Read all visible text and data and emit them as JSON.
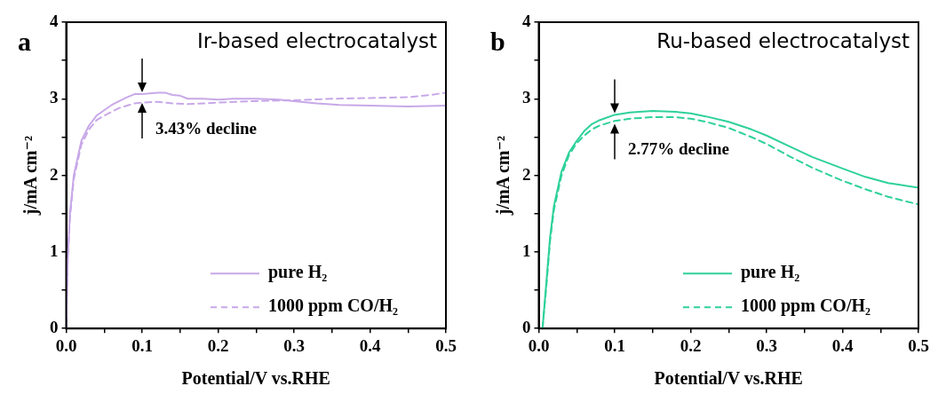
{
  "chart_data": [
    {
      "type": "line",
      "title": "a",
      "xlabel": "Potential/V vs.RHE",
      "ylabel": "j/mA cm⁻²",
      "annotations": [
        "Ir-based electrocatalyst",
        {
          "text": "3.43% decline",
          "x": 0.1,
          "y": 3.06
        }
      ],
      "xlim": [
        0,
        0.5
      ],
      "ylim": [
        0,
        4
      ],
      "xticks": [
        {
          "value": 0,
          "label": "0.0"
        },
        {
          "value": 0.05,
          "label": null
        },
        0.1,
        {
          "value": 0.15,
          "label": null
        },
        0.2,
        {
          "value": 0.25,
          "label": null
        },
        0.3,
        {
          "value": 0.35,
          "label": null
        },
        0.4,
        {
          "value": 0.45,
          "label": null
        },
        0.5
      ],
      "yticks": [
        0,
        {
          "value": 0.5,
          "label": null
        },
        1,
        {
          "value": 1.5,
          "label": null
        },
        2,
        {
          "value": 2.5,
          "label": null
        },
        3,
        {
          "value": 3.5,
          "label": null
        },
        4
      ],
      "legend": "bottom right",
      "marker": "none",
      "series": [
        {
          "name": "pure H₂",
          "color": "#c8a8e8",
          "line_style": "solid",
          "x": [
            0,
            0.002,
            0.005,
            0.01,
            0.02,
            0.03,
            0.04,
            0.05,
            0.06,
            0.07,
            0.08,
            0.09,
            0.1,
            0.11,
            0.12,
            0.13,
            0.14,
            0.15,
            0.16,
            0.18,
            0.2,
            0.22,
            0.25,
            0.28,
            0.3,
            0.33,
            0.36,
            0.4,
            0.45,
            0.5
          ],
          "values": [
            0,
            0.9,
            1.5,
            2.0,
            2.45,
            2.65,
            2.78,
            2.85,
            2.92,
            2.97,
            3.02,
            3.06,
            3.06,
            3.07,
            3.08,
            3.08,
            3.05,
            3.04,
            3.0,
            3.0,
            2.99,
            3.0,
            3.0,
            2.99,
            2.97,
            2.94,
            2.92,
            2.91,
            2.9,
            2.91
          ]
        },
        {
          "name": "1000 ppm CO/H₂",
          "color": "#c8a8e8",
          "line_style": "dashed",
          "x": [
            0,
            0.002,
            0.005,
            0.01,
            0.02,
            0.03,
            0.04,
            0.05,
            0.06,
            0.07,
            0.08,
            0.09,
            0.1,
            0.12,
            0.14,
            0.16,
            0.2,
            0.25,
            0.3,
            0.35,
            0.4,
            0.45,
            0.48,
            0.5
          ],
          "values": [
            0,
            0.9,
            1.45,
            1.95,
            2.4,
            2.6,
            2.72,
            2.78,
            2.83,
            2.88,
            2.91,
            2.94,
            2.95,
            2.96,
            2.94,
            2.93,
            2.95,
            2.97,
            2.98,
            3.0,
            3.01,
            3.02,
            3.05,
            3.08
          ]
        }
      ]
    },
    {
      "type": "line",
      "title": "b",
      "xlabel": "Potential/V vs.RHE",
      "ylabel": "j/mA cm⁻²",
      "annotations": [
        "Ru-based electrocatalyst",
        {
          "text": "2.77% decline",
          "x": 0.1,
          "y": 2.79
        }
      ],
      "xlim": [
        0,
        0.5
      ],
      "ylim": [
        0,
        4
      ],
      "xticks": [
        {
          "value": 0,
          "label": "0.0"
        },
        {
          "value": 0.05,
          "label": null
        },
        0.1,
        {
          "value": 0.15,
          "label": null
        },
        0.2,
        {
          "value": 0.25,
          "label": null
        },
        0.3,
        {
          "value": 0.35,
          "label": null
        },
        0.4,
        {
          "value": 0.45,
          "label": null
        },
        0.5
      ],
      "yticks": [
        0,
        {
          "value": 0.5,
          "label": null
        },
        1,
        {
          "value": 1.5,
          "label": null
        },
        2,
        {
          "value": 2.5,
          "label": null
        },
        3,
        {
          "value": 3.5,
          "label": null
        },
        4
      ],
      "legend": "bottom right",
      "marker": "none",
      "series": [
        {
          "name": "pure H₂",
          "color": "#2ed19a",
          "line_style": "solid",
          "x": [
            0.005,
            0.01,
            0.015,
            0.02,
            0.03,
            0.04,
            0.05,
            0.06,
            0.07,
            0.08,
            0.1,
            0.12,
            0.15,
            0.18,
            0.2,
            0.22,
            0.25,
            0.28,
            0.3,
            0.33,
            0.36,
            0.4,
            0.43,
            0.46,
            0.5
          ],
          "values": [
            0,
            0.6,
            1.2,
            1.6,
            2.05,
            2.3,
            2.45,
            2.58,
            2.67,
            2.72,
            2.79,
            2.82,
            2.84,
            2.83,
            2.81,
            2.77,
            2.7,
            2.6,
            2.52,
            2.38,
            2.24,
            2.09,
            1.98,
            1.9,
            1.84
          ]
        },
        {
          "name": "1000 ppm CO/H₂",
          "color": "#2ed19a",
          "line_style": "dashed",
          "x": [
            0.005,
            0.01,
            0.015,
            0.02,
            0.03,
            0.04,
            0.05,
            0.06,
            0.07,
            0.08,
            0.1,
            0.12,
            0.15,
            0.18,
            0.2,
            0.22,
            0.25,
            0.28,
            0.3,
            0.33,
            0.36,
            0.4,
            0.43,
            0.46,
            0.5
          ],
          "values": [
            0,
            0.55,
            1.15,
            1.55,
            2.0,
            2.27,
            2.42,
            2.52,
            2.6,
            2.65,
            2.71,
            2.74,
            2.76,
            2.76,
            2.74,
            2.7,
            2.62,
            2.5,
            2.41,
            2.25,
            2.1,
            1.93,
            1.82,
            1.72,
            1.62
          ]
        }
      ]
    }
  ]
}
